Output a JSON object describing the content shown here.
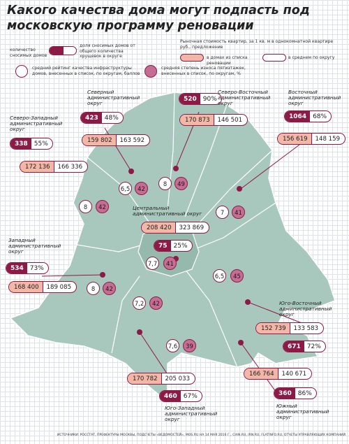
{
  "title": "Какого качества дома могут подпасть под московскую программу реновации",
  "legend": {
    "share_demolish": "доля сносимых домов от общего количества хрущевок в округе",
    "count_demolish": "количество сносимых домов",
    "price_caption": "Рыночная стоимость квартир, за 1 кв. м в однокомнатной квартире руб., предложение",
    "price_list": "в домах из списка реновации",
    "price_avg": "в среднем по округу",
    "infra": "средний рейтинг качества инфраструктуры домов, внесенных в список, по округам, баллов",
    "wear": "средняя степень износа пятиэтажек, внесенных в список, по округам, %"
  },
  "districts": [
    {
      "name": "Северный административный округ",
      "count": "423",
      "share": "48%",
      "price_list": "159 802",
      "price_avg": "163 592",
      "infra": "6,5",
      "wear": "42"
    },
    {
      "name": "Северо-Восточный административный округ",
      "count": "520",
      "share": "90%",
      "price_list": "170 873",
      "price_avg": "146 501",
      "infra": "8",
      "wear": "49"
    },
    {
      "name": "Восточный административный округ",
      "count": "1064",
      "share": "68%",
      "price_list": "156 619",
      "price_avg": "148 159",
      "infra": "7",
      "wear": "41"
    },
    {
      "name": "Северо-Западный административный округ",
      "count": "338",
      "share": "55%",
      "price_list": "172 136",
      "price_avg": "166 336",
      "infra": "8",
      "wear": "42"
    },
    {
      "name": "Центральный административный округ",
      "count": "75",
      "share": "25%",
      "price_list": "208 420",
      "price_avg": "323 869",
      "infra": "7,7",
      "wear": "41"
    },
    {
      "name": "Западный административный округ",
      "count": "534",
      "share": "73%",
      "price_list": "168 400",
      "price_avg": "189 085",
      "infra": "8",
      "wear": "42"
    },
    {
      "name": "Юго-Восточный административный округ",
      "count": "671",
      "share": "72%",
      "price_list": "152 739",
      "price_avg": "133 583",
      "infra": "6,5",
      "wear": "45"
    },
    {
      "name": "Юго-Западный административный округ",
      "count": "460",
      "share": "67%",
      "price_list": "170 782",
      "price_avg": "205 033",
      "infra": "7,2",
      "wear": "42"
    },
    {
      "name": "Южный административный округ",
      "count": "360",
      "share": "86%",
      "price_list": "166 764",
      "price_avg": "140 671",
      "infra": "7,6",
      "wear": "39"
    }
  ],
  "source": "ИСТОЧНИКИ: РОССТАТ, ПРЕФЕКТУРЫ МОСКВЫ, ПОДСЧЕТЫ «ВЕДОМОСТЕЙ», MOS.RU НА 14 МАЯ 2016 Г., CIAN.RU, IRN.RU, FLATINFO.RU, ОТЧЕТЫ УПРАВЛЯЮЩИХ КОМПАНИЙ",
  "colors": {
    "accent": "#8b1a47",
    "pink": "#c46e94",
    "salmon": "#f2b7a6",
    "map": "#a8c8bd",
    "grid": "#dfe3e6"
  }
}
